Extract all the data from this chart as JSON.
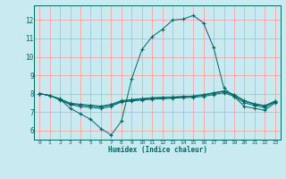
{
  "xlabel": "Humidex (Indice chaleur)",
  "xlim": [
    -0.5,
    23.5
  ],
  "ylim": [
    5.5,
    12.8
  ],
  "xticks": [
    0,
    1,
    2,
    3,
    4,
    5,
    6,
    7,
    8,
    9,
    10,
    11,
    12,
    13,
    14,
    15,
    16,
    17,
    18,
    19,
    20,
    21,
    22,
    23
  ],
  "yticks": [
    6,
    7,
    8,
    9,
    10,
    11,
    12
  ],
  "bg_color": "#c8eaf0",
  "grid_color": "#ff9999",
  "line_color": "#006666",
  "line1_y": [
    8.0,
    7.9,
    7.7,
    7.2,
    6.9,
    6.6,
    6.1,
    5.75,
    6.5,
    8.8,
    10.4,
    11.1,
    11.5,
    12.0,
    12.05,
    12.25,
    11.85,
    10.5,
    8.3,
    7.85,
    7.3,
    7.2,
    7.1,
    7.5
  ],
  "line2_y": [
    8.0,
    7.9,
    7.65,
    7.4,
    7.3,
    7.25,
    7.2,
    7.3,
    7.55,
    7.6,
    7.65,
    7.7,
    7.72,
    7.75,
    7.78,
    7.8,
    7.85,
    7.95,
    8.05,
    7.85,
    7.5,
    7.35,
    7.25,
    7.55
  ],
  "line3_y": [
    8.0,
    7.9,
    7.7,
    7.45,
    7.38,
    7.33,
    7.28,
    7.38,
    7.58,
    7.65,
    7.7,
    7.75,
    7.78,
    7.8,
    7.83,
    7.85,
    7.92,
    8.02,
    8.12,
    7.92,
    7.58,
    7.42,
    7.32,
    7.58
  ],
  "line4_y": [
    8.0,
    7.9,
    7.72,
    7.48,
    7.42,
    7.37,
    7.32,
    7.42,
    7.62,
    7.68,
    7.73,
    7.78,
    7.8,
    7.82,
    7.85,
    7.87,
    7.95,
    8.05,
    8.15,
    7.95,
    7.62,
    7.45,
    7.35,
    7.6
  ]
}
